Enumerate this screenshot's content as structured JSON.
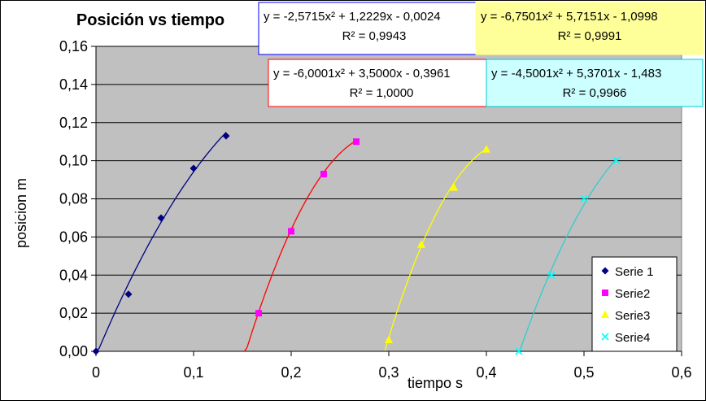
{
  "chart_data": {
    "type": "scatter",
    "title": "Posición vs tiempo",
    "xlabel": "tiempo s",
    "ylabel": "posicion m",
    "xlim": [
      0,
      0.6
    ],
    "ylim": [
      0,
      0.16
    ],
    "xticks": [
      0,
      0.1,
      0.2,
      0.3,
      0.4,
      0.5,
      0.6
    ],
    "xtick_labels": [
      "0",
      "0,1",
      "0,2",
      "0,3",
      "0,4",
      "0,5",
      "0,6"
    ],
    "yticks": [
      0,
      0.02,
      0.04,
      0.06,
      0.08,
      0.1,
      0.12,
      0.14,
      0.16
    ],
    "ytick_labels": [
      "0,00",
      "0,02",
      "0,04",
      "0,06",
      "0,08",
      "0,10",
      "0,12",
      "0,14",
      "0,16"
    ],
    "grid": true,
    "legend_position": "bottom-right",
    "plot_background": "#c0c0c0",
    "series": [
      {
        "name": "Serie 1",
        "color": "#000080",
        "marker": "diamond",
        "x": [
          0,
          0.0333,
          0.0667,
          0.1,
          0.1333
        ],
        "y": [
          0,
          0.03,
          0.07,
          0.096,
          0.113
        ],
        "fit": {
          "a": -2.5715,
          "b": 1.2229,
          "c": -0.0024,
          "range": [
            0,
            0.1333
          ]
        },
        "equation": "y = -2,5715x² + 1,2229x - 0,0024",
        "r2": "R² = 0,9943"
      },
      {
        "name": "Serie2",
        "color": "#ff00ff",
        "line_color": "#ff0000",
        "marker": "square",
        "x": [
          0.1667,
          0.2,
          0.2333,
          0.2667
        ],
        "y": [
          0.02,
          0.063,
          0.093,
          0.11
        ],
        "fit": {
          "a": -6.0001,
          "b": 3.5,
          "c": -0.3961,
          "range": [
            0.152,
            0.2667
          ]
        },
        "equation": "y = -6,0001x² + 3,5000x - 0,3961",
        "r2": "R² = 1,0000"
      },
      {
        "name": "Serie3",
        "color": "#ffff00",
        "marker": "triangle",
        "x": [
          0.3,
          0.3333,
          0.3667,
          0.4
        ],
        "y": [
          0.006,
          0.056,
          0.086,
          0.106
        ],
        "fit": {
          "a": -6.7501,
          "b": 5.7151,
          "c": -1.0998,
          "range": [
            0.296,
            0.4
          ]
        },
        "equation": "y = -6,7501x² + 5,7151x - 1,0998",
        "r2": "R² = 0,9991"
      },
      {
        "name": "Serie4",
        "color": "#00ffff",
        "line_color": "#33cccc",
        "marker": "x",
        "x": [
          0.4333,
          0.4667,
          0.5,
          0.5333
        ],
        "y": [
          0,
          0.04,
          0.08,
          0.1
        ],
        "fit": {
          "a": -4.5001,
          "b": 5.3701,
          "c": -1.483,
          "range": [
            0.432,
            0.5333
          ]
        },
        "equation": "y = -4,5001x² + 5,3701x - 1,483",
        "r2": "R² = 0,9966"
      }
    ]
  }
}
